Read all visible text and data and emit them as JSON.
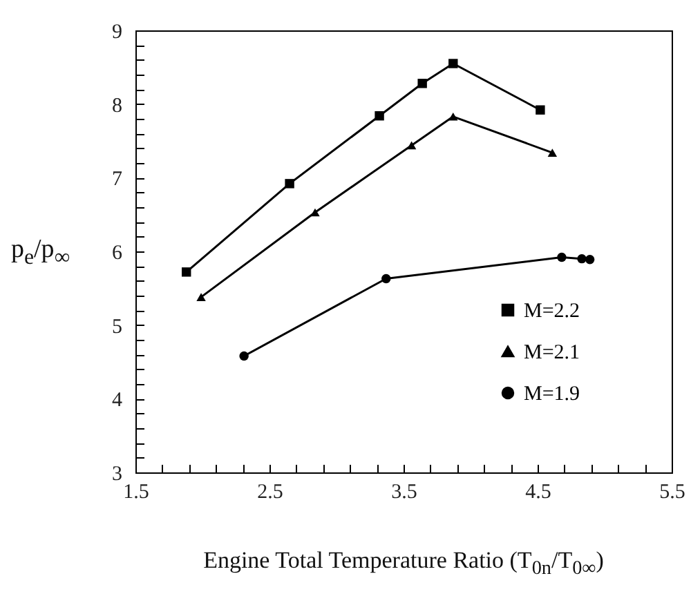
{
  "chart_data": {
    "type": "line",
    "xlabel": "Engine Total Temperature Ratio (T$_{0n}$/T$_{0∞}$)",
    "ylabel": "p$_{e}$/p$_{∞}$",
    "xlim": [
      1.5,
      5.5
    ],
    "ylim": [
      3,
      9
    ],
    "xticks": [
      1.5,
      {
        "value": 1.7,
        "label": null
      },
      {
        "value": 1.9,
        "label": null
      },
      {
        "value": 2.1,
        "label": null
      },
      {
        "value": 2.3,
        "label": null
      },
      2.5,
      {
        "value": 2.7,
        "label": null
      },
      {
        "value": 2.9,
        "label": null
      },
      {
        "value": 3.1,
        "label": null
      },
      {
        "value": 3.3,
        "label": null
      },
      3.5,
      {
        "value": 3.7,
        "label": null
      },
      {
        "value": 3.9,
        "label": null
      },
      {
        "value": 4.1,
        "label": null
      },
      {
        "value": 4.3,
        "label": null
      },
      4.5,
      {
        "value": 4.7,
        "label": null
      },
      {
        "value": 4.9,
        "label": null
      },
      {
        "value": 5.1,
        "label": null
      },
      {
        "value": 5.3,
        "label": null
      },
      5.5
    ],
    "yticks": [
      3,
      {
        "value": 3.2,
        "label": null
      },
      {
        "value": 3.4,
        "label": null
      },
      {
        "value": 3.6,
        "label": null
      },
      {
        "value": 3.8,
        "label": null
      },
      4,
      {
        "value": 4.2,
        "label": null
      },
      {
        "value": 4.4,
        "label": null
      },
      {
        "value": 4.6,
        "label": null
      },
      {
        "value": 4.8,
        "label": null
      },
      5,
      {
        "value": 5.2,
        "label": null
      },
      {
        "value": 5.4,
        "label": null
      },
      {
        "value": 5.6,
        "label": null
      },
      {
        "value": 5.8,
        "label": null
      },
      6,
      {
        "value": 6.2,
        "label": null
      },
      {
        "value": 6.4,
        "label": null
      },
      {
        "value": 6.6,
        "label": null
      },
      {
        "value": 6.8,
        "label": null
      },
      7,
      {
        "value": 7.2,
        "label": null
      },
      {
        "value": 7.4,
        "label": null
      },
      {
        "value": 7.6,
        "label": null
      },
      {
        "value": 7.8,
        "label": null
      },
      8,
      {
        "value": 8.2,
        "label": null
      },
      {
        "value": 8.4,
        "label": null
      },
      {
        "value": 8.6,
        "label": null
      },
      {
        "value": 8.8,
        "label": null
      },
      9
    ],
    "grid": false,
    "legend": "bottom right",
    "line_style": "solid",
    "series": [
      {
        "name": "M=2.2",
        "color": "#000000",
        "marker": "square",
        "x": [
          1.88,
          2.65,
          3.32,
          3.64,
          3.87,
          4.52
        ],
        "values": [
          5.72,
          6.92,
          7.84,
          8.28,
          8.55,
          7.92
        ]
      },
      {
        "name": "M=2.1",
        "color": "#000000",
        "marker": "triangle",
        "x": [
          1.99,
          2.84,
          3.56,
          3.87,
          4.61
        ],
        "values": [
          5.38,
          6.53,
          7.44,
          7.83,
          7.34
        ]
      },
      {
        "name": "M=1.9",
        "color": "#000000",
        "marker": "circle",
        "x": [
          2.31,
          3.37,
          4.68,
          4.83,
          4.89
        ],
        "values": [
          4.58,
          5.63,
          5.92,
          5.9,
          5.89
        ]
      }
    ]
  }
}
